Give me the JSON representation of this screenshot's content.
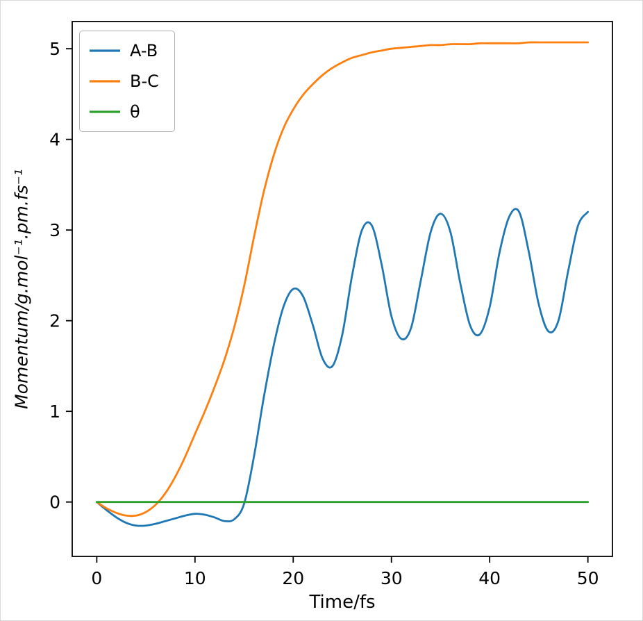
{
  "figure": {
    "background": "#ffffff"
  },
  "chart_data": {
    "type": "line",
    "title": "",
    "xlabel": "Time/fs",
    "ylabel": "Momentum/g.mol⁻¹.pm.fs⁻¹",
    "xlim": [
      -2.5,
      52.5
    ],
    "ylim": [
      -0.6,
      5.3
    ],
    "xticks": [
      0,
      10,
      20,
      30,
      40,
      50
    ],
    "yticks": [
      0,
      1,
      2,
      3,
      4,
      5
    ],
    "grid": false,
    "legend_position": "upper-left",
    "x": [
      0,
      1,
      2,
      3,
      4,
      5,
      6,
      7,
      8,
      9,
      10,
      11,
      12,
      13,
      14,
      15,
      16,
      17,
      18,
      19,
      20,
      21,
      22,
      23,
      24,
      25,
      26,
      27,
      28,
      29,
      30,
      31,
      32,
      33,
      34,
      35,
      36,
      37,
      38,
      39,
      40,
      41,
      42,
      43,
      44,
      45,
      46,
      47,
      48,
      49,
      50
    ],
    "series": [
      {
        "name": "A-B",
        "color": "#1f77b4",
        "values": [
          0.0,
          -0.09,
          -0.17,
          -0.23,
          -0.26,
          -0.26,
          -0.24,
          -0.21,
          -0.18,
          -0.15,
          -0.13,
          -0.14,
          -0.17,
          -0.21,
          -0.19,
          -0.02,
          0.5,
          1.15,
          1.72,
          2.15,
          2.35,
          2.27,
          1.95,
          1.58,
          1.5,
          1.85,
          2.5,
          3.0,
          3.05,
          2.62,
          2.05,
          1.8,
          1.92,
          2.45,
          2.98,
          3.18,
          2.98,
          2.42,
          1.95,
          1.85,
          2.15,
          2.75,
          3.15,
          3.2,
          2.75,
          2.18,
          1.88,
          2.0,
          2.55,
          3.05,
          3.2
        ]
      },
      {
        "name": "B-C",
        "color": "#ff7f0e",
        "values": [
          0.0,
          -0.07,
          -0.12,
          -0.15,
          -0.15,
          -0.11,
          -0.03,
          0.1,
          0.28,
          0.5,
          0.75,
          1.0,
          1.27,
          1.57,
          1.93,
          2.38,
          2.92,
          3.42,
          3.82,
          4.12,
          4.33,
          4.49,
          4.61,
          4.71,
          4.79,
          4.85,
          4.9,
          4.93,
          4.96,
          4.98,
          5.0,
          5.01,
          5.02,
          5.03,
          5.04,
          5.04,
          5.05,
          5.05,
          5.05,
          5.06,
          5.06,
          5.06,
          5.06,
          5.06,
          5.07,
          5.07,
          5.07,
          5.07,
          5.07,
          5.07,
          5.07
        ]
      },
      {
        "name": "θ",
        "color": "#2ca02c",
        "values": [
          0,
          0,
          0,
          0,
          0,
          0,
          0,
          0,
          0,
          0,
          0,
          0,
          0,
          0,
          0,
          0,
          0,
          0,
          0,
          0,
          0,
          0,
          0,
          0,
          0,
          0,
          0,
          0,
          0,
          0,
          0,
          0,
          0,
          0,
          0,
          0,
          0,
          0,
          0,
          0,
          0,
          0,
          0,
          0,
          0,
          0,
          0,
          0,
          0,
          0,
          0
        ]
      }
    ]
  }
}
